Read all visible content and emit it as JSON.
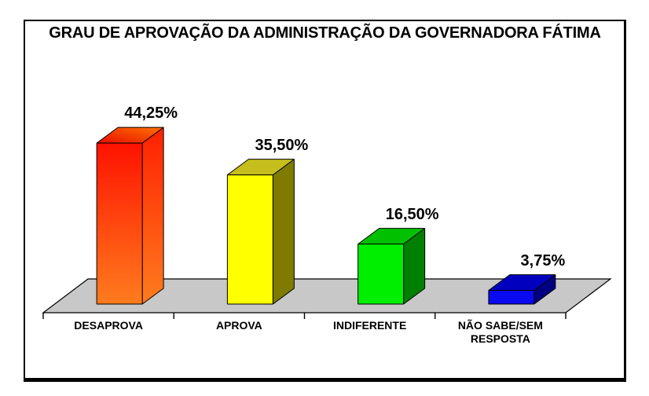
{
  "canvas": {
    "background": "#FFFFFF",
    "frame_border_color": "#000000"
  },
  "chart_data": {
    "type": "bar",
    "style": "3d-column",
    "title": "GRAU DE APROVAÇÃO DA ADMINISTRAÇÃO DA GOVERNADORA FÁTIMA",
    "categories": [
      "DESAPROVA",
      "APROVA",
      "INDIFERENTE",
      "NÃO SABE/SEM RESPOSTA"
    ],
    "values": [
      44.25,
      35.5,
      16.5,
      3.75
    ],
    "value_labels": [
      "44,25%",
      "35,50%",
      "16,50%",
      "3,75%"
    ],
    "unit": "%",
    "legend": "none",
    "axes": {
      "y_axis_visible": false,
      "gridlines": false,
      "x_tick_marks": 5
    },
    "text_color": "#000000",
    "floor": {
      "fill": "#C8C8C8",
      "stroke": "#000000"
    },
    "bar_styles": [
      {
        "name": "desaprova-orange",
        "front": [
          "#FF1200",
          "#FF7C1E"
        ],
        "top": [
          "#E80C00",
          "#FF7300"
        ],
        "side": [
          "#FF2000",
          "#FF7C1E"
        ]
      },
      {
        "name": "aprova-yellow",
        "front": [
          "#FFFF00",
          "#FFFF00"
        ],
        "top": [
          "#C6BE1C",
          "#C6BE1C"
        ],
        "side": [
          "#7F7B00",
          "#7F7B00"
        ]
      },
      {
        "name": "indiferente-green",
        "front": [
          "#00EE00",
          "#00EE00"
        ],
        "top": [
          "#00C000",
          "#00C000"
        ],
        "side": [
          "#008000",
          "#008000"
        ]
      },
      {
        "name": "nao-sabe-blue",
        "front": [
          "#0A0AF0",
          "#0A0AF0"
        ],
        "top": [
          "#0000BE",
          "#0000BE"
        ],
        "side": [
          "#000082",
          "#000082"
        ]
      }
    ]
  }
}
